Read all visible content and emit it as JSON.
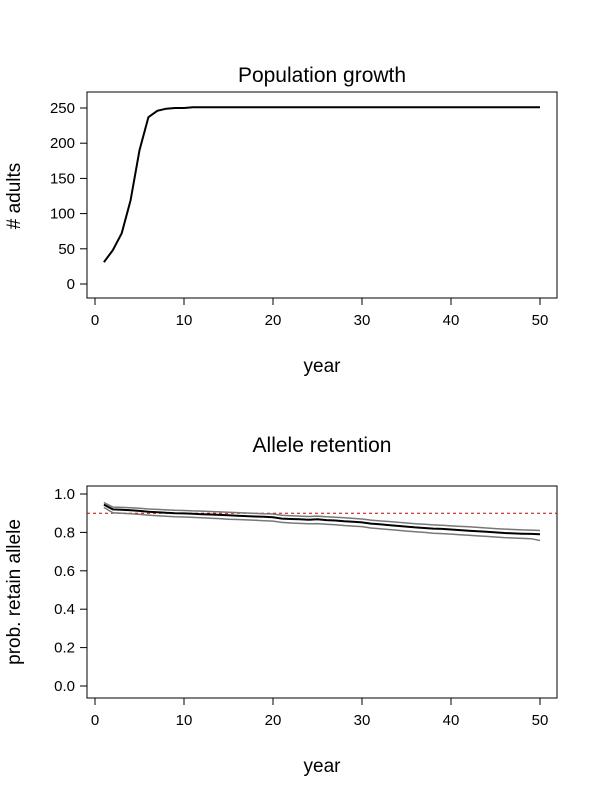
{
  "chart_data": [
    {
      "type": "line",
      "title": "Population growth",
      "xlabel": "year",
      "ylabel": "# adults",
      "xlim": [
        0,
        50
      ],
      "ylim": [
        0,
        250
      ],
      "xticks": [
        0,
        10,
        20,
        30,
        40,
        50
      ],
      "yticks": [
        0,
        50,
        100,
        150,
        200,
        250
      ],
      "grid": false,
      "series": [
        {
          "x": [
            1,
            2,
            3,
            4,
            5,
            6,
            7,
            8,
            9,
            10,
            11,
            12,
            13,
            14,
            15,
            16,
            17,
            18,
            19,
            20,
            21,
            22,
            23,
            24,
            25,
            26,
            27,
            28,
            29,
            30,
            31,
            32,
            33,
            34,
            35,
            36,
            37,
            38,
            39,
            40,
            41,
            42,
            43,
            44,
            45,
            46,
            47,
            48,
            49,
            50
          ],
          "values": [
            31,
            48,
            72,
            119,
            190,
            237,
            246,
            249,
            250,
            250,
            251,
            251,
            251,
            251,
            251,
            251,
            251,
            251,
            251,
            251,
            251,
            251,
            251,
            251,
            251,
            251,
            251,
            251,
            251,
            251,
            251,
            251,
            251,
            251,
            251,
            251,
            251,
            251,
            251,
            251,
            251,
            251,
            251,
            251,
            251,
            251,
            251,
            251,
            251,
            251
          ],
          "color": "#000000"
        }
      ]
    },
    {
      "type": "line",
      "title": "Allele retention",
      "xlabel": "year",
      "ylabel": "prob. retain allele",
      "xlim": [
        0,
        50
      ],
      "ylim": [
        0,
        1
      ],
      "xticks": [
        0,
        10,
        20,
        30,
        40,
        50
      ],
      "yticks": [
        "0.0",
        "0.2",
        "0.4",
        "0.6",
        "0.8",
        "1.0"
      ],
      "grid": false,
      "reference_line": {
        "y": 0.9,
        "color": "#cc0000",
        "style": "dashed"
      },
      "series": [
        {
          "x": [
            1,
            2,
            3,
            4,
            5,
            6,
            7,
            8,
            9,
            10,
            11,
            12,
            13,
            14,
            15,
            16,
            17,
            18,
            19,
            20,
            21,
            22,
            23,
            24,
            25,
            26,
            27,
            28,
            29,
            30,
            31,
            32,
            33,
            34,
            35,
            36,
            37,
            38,
            39,
            40,
            41,
            42,
            43,
            44,
            45,
            46,
            47,
            48,
            49,
            50
          ],
          "values": [
            0.945,
            0.92,
            0.918,
            0.915,
            0.912,
            0.908,
            0.905,
            0.902,
            0.9,
            0.899,
            0.897,
            0.895,
            0.893,
            0.891,
            0.889,
            0.887,
            0.885,
            0.883,
            0.881,
            0.879,
            0.872,
            0.87,
            0.868,
            0.866,
            0.868,
            0.864,
            0.862,
            0.858,
            0.855,
            0.852,
            0.846,
            0.842,
            0.838,
            0.834,
            0.83,
            0.826,
            0.823,
            0.82,
            0.818,
            0.815,
            0.812,
            0.809,
            0.806,
            0.803,
            0.8,
            0.797,
            0.795,
            0.793,
            0.792,
            0.79
          ],
          "color": "#000000"
        },
        {
          "x": [
            1,
            2,
            3,
            4,
            5,
            6,
            7,
            8,
            9,
            10,
            11,
            12,
            13,
            14,
            15,
            16,
            17,
            18,
            19,
            20,
            21,
            22,
            23,
            24,
            25,
            26,
            27,
            28,
            29,
            30,
            31,
            32,
            33,
            34,
            35,
            36,
            37,
            38,
            39,
            40,
            41,
            42,
            43,
            44,
            45,
            46,
            47,
            48,
            49,
            50
          ],
          "values": [
            0.955,
            0.932,
            0.93,
            0.928,
            0.926,
            0.922,
            0.92,
            0.917,
            0.915,
            0.914,
            0.912,
            0.911,
            0.909,
            0.907,
            0.905,
            0.903,
            0.901,
            0.899,
            0.897,
            0.896,
            0.889,
            0.887,
            0.885,
            0.883,
            0.885,
            0.881,
            0.879,
            0.876,
            0.873,
            0.87,
            0.864,
            0.86,
            0.857,
            0.853,
            0.849,
            0.845,
            0.842,
            0.839,
            0.837,
            0.834,
            0.831,
            0.829,
            0.826,
            0.823,
            0.82,
            0.817,
            0.815,
            0.813,
            0.812,
            0.81
          ],
          "color": "#777777"
        },
        {
          "x": [
            1,
            2,
            3,
            4,
            5,
            6,
            7,
            8,
            9,
            10,
            11,
            12,
            13,
            14,
            15,
            16,
            17,
            18,
            19,
            20,
            21,
            22,
            23,
            24,
            25,
            26,
            27,
            28,
            29,
            30,
            31,
            32,
            33,
            34,
            35,
            36,
            37,
            38,
            39,
            40,
            41,
            42,
            43,
            44,
            45,
            46,
            47,
            48,
            49,
            50
          ],
          "values": [
            0.93,
            0.902,
            0.9,
            0.897,
            0.894,
            0.89,
            0.887,
            0.884,
            0.881,
            0.88,
            0.878,
            0.876,
            0.874,
            0.872,
            0.869,
            0.867,
            0.865,
            0.863,
            0.861,
            0.859,
            0.852,
            0.849,
            0.847,
            0.845,
            0.846,
            0.842,
            0.84,
            0.836,
            0.833,
            0.83,
            0.823,
            0.819,
            0.815,
            0.811,
            0.807,
            0.803,
            0.8,
            0.796,
            0.794,
            0.791,
            0.788,
            0.785,
            0.782,
            0.779,
            0.776,
            0.773,
            0.771,
            0.769,
            0.767,
            0.758
          ],
          "color": "#777777"
        }
      ]
    }
  ]
}
